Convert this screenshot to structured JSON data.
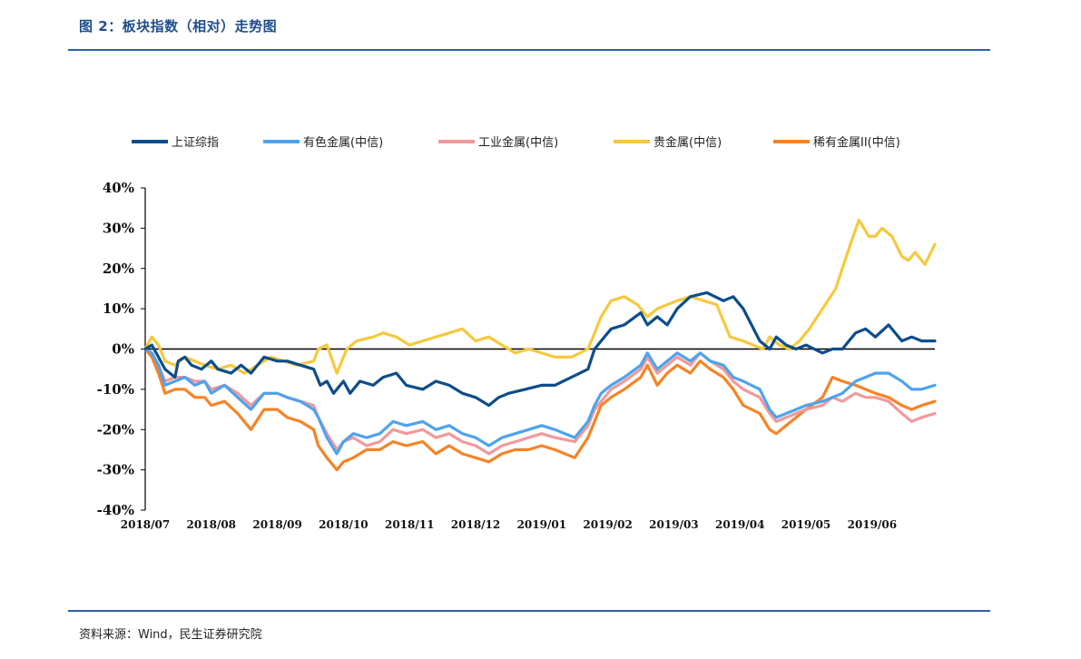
{
  "header": {
    "title": "图 2：板块指数（相对）走势图"
  },
  "footer": {
    "source": "资料来源：Wind，民生证券研究院"
  },
  "colors": {
    "rule": "#2e5fa8",
    "szzs": "#0d4d8a",
    "youse": "#4ea3ee",
    "gongye": "#f2999b",
    "guijin": "#f6c93b",
    "xitu": "#f58426"
  },
  "chart_data": {
    "type": "line",
    "title": "",
    "xlabel": "",
    "ylabel": "",
    "ylim": [
      -40,
      40
    ],
    "yticks": [
      -40,
      -30,
      -20,
      -10,
      0,
      10,
      20,
      30,
      40
    ],
    "ytick_labels": [
      "-40%",
      "-30%",
      "-20%",
      "-10%",
      "0%",
      "10%",
      "20%",
      "30%",
      "40%"
    ],
    "x_categories": [
      "2018/07",
      "2018/08",
      "2018/09",
      "2018/10",
      "2018/11",
      "2018/12",
      "2019/01",
      "2019/02",
      "2019/03",
      "2019/04",
      "2019/05",
      "2019/06"
    ],
    "xlim": [
      0,
      11.95
    ],
    "legend_position": "top",
    "series": [
      {
        "name": "上证综指",
        "color_key": "szzs",
        "x": [
          0.0,
          0.1,
          0.2,
          0.3,
          0.45,
          0.5,
          0.6,
          0.7,
          0.85,
          1.0,
          1.1,
          1.3,
          1.45,
          1.6,
          1.8,
          2.0,
          2.15,
          2.35,
          2.55,
          2.65,
          2.75,
          2.85,
          3.0,
          3.1,
          3.25,
          3.45,
          3.6,
          3.8,
          3.95,
          4.2,
          4.4,
          4.6,
          4.8,
          5.0,
          5.2,
          5.35,
          5.5,
          5.75,
          6.0,
          6.2,
          6.45,
          6.7,
          6.8,
          6.9,
          7.05,
          7.25,
          7.5,
          7.6,
          7.75,
          7.9,
          8.05,
          8.25,
          8.5,
          8.75,
          8.9,
          9.05,
          9.3,
          9.45,
          9.55,
          9.7,
          9.85,
          10.0,
          10.25,
          10.4,
          10.55,
          10.75,
          10.9,
          11.05,
          11.25,
          11.45,
          11.6,
          11.75,
          11.95
        ],
        "y": [
          0,
          1,
          -2,
          -5,
          -7,
          -3,
          -2,
          -4,
          -5,
          -3,
          -5,
          -6,
          -4,
          -6,
          -2,
          -3,
          -3,
          -4,
          -5,
          -9,
          -8,
          -11,
          -8,
          -11,
          -8,
          -9,
          -7,
          -6,
          -9,
          -10,
          -8,
          -9,
          -11,
          -12,
          -14,
          -12,
          -11,
          -10,
          -9,
          -9,
          -7,
          -5,
          0,
          2,
          5,
          6,
          9,
          6,
          8,
          6,
          10,
          13,
          14,
          12,
          13,
          10,
          2,
          0,
          3,
          1,
          0,
          1,
          -1,
          0,
          0,
          4,
          5,
          3,
          6,
          2,
          3,
          2,
          2
        ]
      },
      {
        "name": "有色金属(中信)",
        "color_key": "youse",
        "x": [
          0.0,
          0.1,
          0.2,
          0.3,
          0.45,
          0.6,
          0.75,
          0.9,
          1.0,
          1.2,
          1.4,
          1.6,
          1.8,
          2.0,
          2.15,
          2.35,
          2.55,
          2.62,
          2.75,
          2.9,
          3.0,
          3.15,
          3.35,
          3.55,
          3.75,
          3.95,
          4.2,
          4.4,
          4.6,
          4.8,
          5.0,
          5.2,
          5.4,
          5.6,
          5.8,
          6.0,
          6.2,
          6.5,
          6.7,
          6.8,
          6.9,
          7.05,
          7.25,
          7.5,
          7.6,
          7.75,
          7.9,
          8.05,
          8.25,
          8.4,
          8.55,
          8.75,
          8.9,
          9.05,
          9.3,
          9.45,
          9.55,
          9.7,
          9.85,
          10.0,
          10.25,
          10.4,
          10.55,
          10.75,
          10.9,
          11.05,
          11.25,
          11.45,
          11.6,
          11.75,
          11.95
        ],
        "y": [
          0,
          -1,
          -4,
          -9,
          -8,
          -7,
          -9,
          -8,
          -11,
          -9,
          -12,
          -15,
          -11,
          -11,
          -12,
          -13,
          -15,
          -17,
          -22,
          -26,
          -23,
          -21,
          -22,
          -21,
          -18,
          -19,
          -18,
          -20,
          -19,
          -21,
          -22,
          -24,
          -22,
          -21,
          -20,
          -19,
          -20,
          -22,
          -18,
          -14,
          -11,
          -9,
          -7,
          -4,
          -1,
          -5,
          -3,
          -1,
          -3,
          -1,
          -3,
          -4,
          -7,
          -8,
          -10,
          -15,
          -17,
          -16,
          -15,
          -14,
          -13,
          -12,
          -11,
          -8,
          -7,
          -6,
          -6,
          -8,
          -10,
          -10,
          -9
        ]
      },
      {
        "name": "工业金属(中信)",
        "color_key": "gongye",
        "x": [
          0.0,
          0.1,
          0.2,
          0.3,
          0.45,
          0.6,
          0.75,
          0.9,
          1.0,
          1.2,
          1.4,
          1.6,
          1.8,
          2.0,
          2.15,
          2.35,
          2.55,
          2.62,
          2.75,
          2.9,
          3.0,
          3.15,
          3.35,
          3.55,
          3.75,
          3.95,
          4.2,
          4.4,
          4.6,
          4.8,
          5.0,
          5.2,
          5.4,
          5.6,
          5.8,
          6.0,
          6.2,
          6.5,
          6.7,
          6.8,
          6.9,
          7.05,
          7.25,
          7.5,
          7.6,
          7.75,
          7.9,
          8.05,
          8.25,
          8.4,
          8.55,
          8.75,
          8.9,
          9.05,
          9.3,
          9.45,
          9.55,
          9.7,
          9.85,
          10.0,
          10.25,
          10.4,
          10.55,
          10.75,
          10.9,
          11.05,
          11.25,
          11.45,
          11.6,
          11.75,
          11.95
        ],
        "y": [
          0,
          -1,
          -4,
          -8,
          -7,
          -7,
          -8,
          -8,
          -10,
          -9,
          -11,
          -14,
          -11,
          -11,
          -12,
          -13,
          -14,
          -17,
          -21,
          -25,
          -23,
          -22,
          -24,
          -23,
          -20,
          -21,
          -20,
          -22,
          -21,
          -23,
          -24,
          -26,
          -24,
          -23,
          -22,
          -21,
          -22,
          -23,
          -19,
          -15,
          -13,
          -10,
          -8,
          -5,
          -2,
          -6,
          -4,
          -2,
          -4,
          -1,
          -3,
          -5,
          -8,
          -10,
          -12,
          -16,
          -18,
          -17,
          -16,
          -15,
          -14,
          -12,
          -13,
          -11,
          -12,
          -12,
          -13,
          -16,
          -18,
          -17,
          -16
        ]
      },
      {
        "name": "贵金属(中信)",
        "color_key": "guijin",
        "x": [
          0.0,
          0.1,
          0.2,
          0.3,
          0.45,
          0.6,
          0.75,
          0.9,
          1.1,
          1.3,
          1.5,
          1.7,
          1.9,
          2.1,
          2.3,
          2.55,
          2.62,
          2.75,
          2.9,
          3.05,
          3.2,
          3.45,
          3.6,
          3.8,
          4.0,
          4.2,
          4.4,
          4.6,
          4.8,
          5.0,
          5.2,
          5.4,
          5.6,
          5.8,
          6.0,
          6.2,
          6.45,
          6.7,
          6.8,
          6.9,
          7.05,
          7.25,
          7.45,
          7.6,
          7.75,
          7.9,
          8.05,
          8.25,
          8.45,
          8.65,
          8.85,
          9.05,
          9.2,
          9.35,
          9.45,
          9.6,
          9.75,
          9.9,
          10.05,
          10.25,
          10.45,
          10.65,
          10.8,
          10.95,
          11.05,
          11.15,
          11.3,
          11.45,
          11.55,
          11.65,
          11.8,
          11.95
        ],
        "y": [
          0,
          3,
          1,
          -3,
          -4,
          -2,
          -3,
          -4,
          -5,
          -4,
          -6,
          -4,
          -2,
          -3,
          -4,
          -3,
          0,
          1,
          -6,
          0,
          2,
          3,
          4,
          3,
          1,
          2,
          3,
          4,
          5,
          2,
          3,
          1,
          -1,
          0,
          -1,
          -2,
          -2,
          0,
          4,
          8,
          12,
          13,
          11,
          8,
          10,
          11,
          12,
          13,
          12,
          11,
          3,
          2,
          1,
          0,
          3,
          1,
          0,
          2,
          5,
          10,
          15,
          25,
          32,
          28,
          28,
          30,
          28,
          23,
          22,
          24,
          21,
          26
        ]
      },
      {
        "name": "稀有金属II(中信)",
        "color_key": "xitu",
        "x": [
          0.0,
          0.1,
          0.2,
          0.3,
          0.45,
          0.6,
          0.75,
          0.9,
          1.0,
          1.2,
          1.4,
          1.6,
          1.8,
          2.0,
          2.15,
          2.35,
          2.55,
          2.62,
          2.75,
          2.9,
          3.0,
          3.15,
          3.35,
          3.55,
          3.75,
          3.95,
          4.2,
          4.4,
          4.6,
          4.8,
          5.0,
          5.2,
          5.4,
          5.6,
          5.8,
          6.0,
          6.2,
          6.5,
          6.7,
          6.8,
          6.9,
          7.05,
          7.25,
          7.5,
          7.6,
          7.75,
          7.9,
          8.05,
          8.25,
          8.4,
          8.55,
          8.75,
          8.9,
          9.05,
          9.3,
          9.45,
          9.55,
          9.7,
          9.85,
          10.0,
          10.25,
          10.4,
          10.55,
          10.75,
          10.9,
          11.05,
          11.25,
          11.45,
          11.6,
          11.75,
          11.95
        ],
        "y": [
          0,
          -2,
          -6,
          -11,
          -10,
          -10,
          -12,
          -12,
          -14,
          -13,
          -16,
          -20,
          -15,
          -15,
          -17,
          -18,
          -20,
          -24,
          -27,
          -30,
          -28,
          -27,
          -25,
          -25,
          -23,
          -24,
          -23,
          -26,
          -24,
          -26,
          -27,
          -28,
          -26,
          -25,
          -25,
          -24,
          -25,
          -27,
          -22,
          -18,
          -14,
          -12,
          -10,
          -7,
          -4,
          -9,
          -6,
          -4,
          -6,
          -3,
          -5,
          -7,
          -10,
          -14,
          -16,
          -20,
          -21,
          -19,
          -17,
          -15,
          -12,
          -7,
          -8,
          -9,
          -10,
          -11,
          -12,
          -14,
          -15,
          -14,
          -13
        ]
      }
    ]
  }
}
